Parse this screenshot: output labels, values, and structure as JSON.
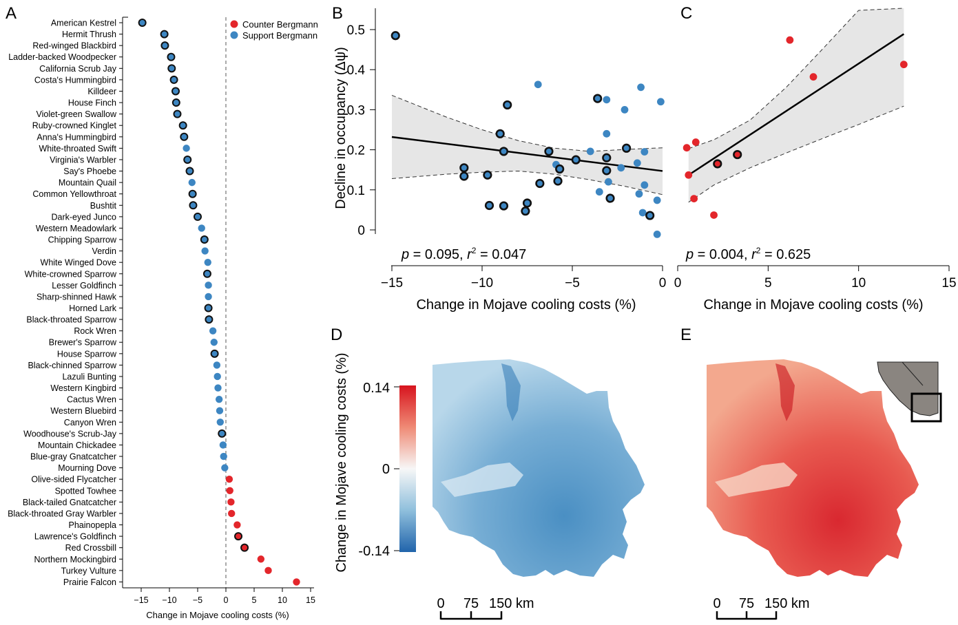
{
  "colors": {
    "counter": "#e3262b",
    "support": "#3d86c2",
    "outline": "#111111",
    "band": "#e6e6e6"
  },
  "panels": {
    "A": {
      "letter": "A",
      "xlabel": "Change in Mojave cooling costs (%)",
      "legend": [
        {
          "label": "Counter Bergmann",
          "color": "#e3262b"
        },
        {
          "label": "Support Bergmann",
          "color": "#3d86c2"
        }
      ]
    },
    "B": {
      "letter": "B",
      "xlabel": "Change in Mojave cooling costs (%)",
      "ylabel": "Decline in occupancy (Δψ)",
      "stats_p": "p",
      "stats_p_val": " = 0.095, ",
      "stats_r": "r",
      "stats_r_sup": "2",
      "stats_r_val": " = 0.047"
    },
    "C": {
      "letter": "C",
      "xlabel": "Change in Mojave cooling costs (%)",
      "stats_p": "p",
      "stats_p_val": " = 0.004, ",
      "stats_r": "r",
      "stats_r_sup": "2",
      "stats_r_val": " = 0.625"
    },
    "D": {
      "letter": "D",
      "colorbar_label": "Change in Mojave cooling costs (%)",
      "colorbar_ticks": [
        "0.14",
        "0",
        "-0.14"
      ],
      "scale": {
        "ticks": [
          "0",
          "75",
          "150 km"
        ]
      }
    },
    "E": {
      "letter": "E",
      "scale": {
        "ticks": [
          "0",
          "75",
          "150 km"
        ]
      }
    }
  },
  "chart_data": [
    {
      "panel": "A",
      "type": "scatter",
      "xlabel": "Change in Mojave cooling costs (%)",
      "xlim": [
        -18,
        15
      ],
      "xticks": [
        -15,
        -10,
        -5,
        0,
        5,
        10,
        15
      ],
      "reference_line_x": 0,
      "legend_position": "top-right",
      "species": [
        {
          "name": "American Kestrel",
          "value": -14.8,
          "group": "support",
          "outlined": true
        },
        {
          "name": "Hermit Thrush",
          "value": -10.9,
          "group": "support",
          "outlined": true
        },
        {
          "name": "Red-winged Blackbird",
          "value": -10.8,
          "group": "support",
          "outlined": true
        },
        {
          "name": "Ladder-backed Woodpecker",
          "value": -9.7,
          "group": "support",
          "outlined": true
        },
        {
          "name": "California Scrub Jay",
          "value": -9.6,
          "group": "support",
          "outlined": true
        },
        {
          "name": "Costa's Hummingbird",
          "value": -9.2,
          "group": "support",
          "outlined": true
        },
        {
          "name": "Killdeer",
          "value": -8.9,
          "group": "support",
          "outlined": true
        },
        {
          "name": "House Finch",
          "value": -8.8,
          "group": "support",
          "outlined": true
        },
        {
          "name": "Violet-green Swallow",
          "value": -8.6,
          "group": "support",
          "outlined": true
        },
        {
          "name": "Ruby-crowned Kinglet",
          "value": -7.6,
          "group": "support",
          "outlined": true
        },
        {
          "name": "Anna's Hummingbird",
          "value": -7.4,
          "group": "support",
          "outlined": true
        },
        {
          "name": "White-throated Swift",
          "value": -7.0,
          "group": "support",
          "outlined": false
        },
        {
          "name": "Virginia's Warbler",
          "value": -6.8,
          "group": "support",
          "outlined": true
        },
        {
          "name": "Say's Phoebe",
          "value": -6.4,
          "group": "support",
          "outlined": true
        },
        {
          "name": "Mountain Quail",
          "value": -6.0,
          "group": "support",
          "outlined": false
        },
        {
          "name": "Common Yellowthroat",
          "value": -5.9,
          "group": "support",
          "outlined": true
        },
        {
          "name": "Bushtit",
          "value": -5.8,
          "group": "support",
          "outlined": true
        },
        {
          "name": "Dark-eyed Junco",
          "value": -5.0,
          "group": "support",
          "outlined": true
        },
        {
          "name": "Western Meadowlark",
          "value": -4.3,
          "group": "support",
          "outlined": false
        },
        {
          "name": "Chipping Sparrow",
          "value": -3.8,
          "group": "support",
          "outlined": true
        },
        {
          "name": "Verdin",
          "value": -3.7,
          "group": "support",
          "outlined": false
        },
        {
          "name": "White Winged Dove",
          "value": -3.2,
          "group": "support",
          "outlined": false
        },
        {
          "name": "White-crowned Sparrow",
          "value": -3.3,
          "group": "support",
          "outlined": true
        },
        {
          "name": "Lesser Goldfinch",
          "value": -3.1,
          "group": "support",
          "outlined": false
        },
        {
          "name": "Sharp-shinned Hawk",
          "value": -3.1,
          "group": "support",
          "outlined": false
        },
        {
          "name": "Horned Lark",
          "value": -3.1,
          "group": "support",
          "outlined": true
        },
        {
          "name": "Black-throated Sparrow",
          "value": -3.0,
          "group": "support",
          "outlined": true
        },
        {
          "name": "Rock Wren",
          "value": -2.3,
          "group": "support",
          "outlined": false
        },
        {
          "name": "Brewer's Sparrow",
          "value": -2.1,
          "group": "support",
          "outlined": false
        },
        {
          "name": "House Sparrow",
          "value": -2.0,
          "group": "support",
          "outlined": true
        },
        {
          "name": "Black-chinned Sparrow",
          "value": -1.6,
          "group": "support",
          "outlined": false
        },
        {
          "name": "Lazuli Bunting",
          "value": -1.5,
          "group": "support",
          "outlined": false
        },
        {
          "name": "Western Kingbird",
          "value": -1.4,
          "group": "support",
          "outlined": false
        },
        {
          "name": "Cactus Wren",
          "value": -1.2,
          "group": "support",
          "outlined": false
        },
        {
          "name": "Western Bluebird",
          "value": -1.1,
          "group": "support",
          "outlined": false
        },
        {
          "name": "Canyon Wren",
          "value": -1.0,
          "group": "support",
          "outlined": false
        },
        {
          "name": "Woodhouse's Scrub-Jay",
          "value": -0.7,
          "group": "support",
          "outlined": true
        },
        {
          "name": "Mountain Chickadee",
          "value": -0.5,
          "group": "support",
          "outlined": false
        },
        {
          "name": "Blue-gray Gnatcatcher",
          "value": -0.4,
          "group": "support",
          "outlined": false
        },
        {
          "name": "Mourning Dove",
          "value": -0.2,
          "group": "support",
          "outlined": false
        },
        {
          "name": "Olive-sided Flycatcher",
          "value": 0.6,
          "group": "counter",
          "outlined": false
        },
        {
          "name": "Spotted Towhee",
          "value": 0.7,
          "group": "counter",
          "outlined": false
        },
        {
          "name": "Black-tailed Gnatcatcher",
          "value": 0.9,
          "group": "counter",
          "outlined": false
        },
        {
          "name": "Black-throated Gray Warbler",
          "value": 1.0,
          "group": "counter",
          "outlined": false
        },
        {
          "name": "Phainopepla",
          "value": 2.0,
          "group": "counter",
          "outlined": false
        },
        {
          "name": "Lawrence's Goldfinch",
          "value": 2.2,
          "group": "counter",
          "outlined": true
        },
        {
          "name": "Red Crossbill",
          "value": 3.3,
          "group": "counter",
          "outlined": true
        },
        {
          "name": "Northern Mockingbird",
          "value": 6.2,
          "group": "counter",
          "outlined": false
        },
        {
          "name": "Turkey Vulture",
          "value": 7.5,
          "group": "counter",
          "outlined": false
        },
        {
          "name": "Prairie Falcon",
          "value": 12.5,
          "group": "counter",
          "outlined": false
        }
      ]
    },
    {
      "panel": "B",
      "type": "scatter",
      "xlabel": "Change in Mojave cooling costs (%)",
      "ylabel": "Decline in occupancy (Δψ)",
      "xlim": [
        -15,
        0
      ],
      "ylim": [
        -0.05,
        0.55
      ],
      "xticks": [
        -15,
        -10,
        -5,
        0
      ],
      "yticks": [
        0,
        0.1,
        0.2,
        0.3,
        0.4,
        0.5
      ],
      "fit": {
        "x": [
          -15,
          0
        ],
        "y": [
          0.232,
          0.147
        ]
      },
      "ci_band": {
        "x": [
          -15,
          -12,
          -10,
          -8,
          -6,
          -4,
          -2,
          0
        ],
        "upper": [
          0.336,
          0.282,
          0.25,
          0.223,
          0.204,
          0.196,
          0.201,
          0.205
        ],
        "lower": [
          0.128,
          0.139,
          0.144,
          0.147,
          0.139,
          0.125,
          0.108,
          0.088
        ]
      },
      "points": [
        {
          "x": -14.8,
          "y": 0.485,
          "outlined": true
        },
        {
          "x": -11.0,
          "y": 0.155,
          "outlined": true
        },
        {
          "x": -11.0,
          "y": 0.134,
          "outlined": true
        },
        {
          "x": -9.7,
          "y": 0.137,
          "outlined": true
        },
        {
          "x": -9.6,
          "y": 0.061,
          "outlined": true
        },
        {
          "x": -9.0,
          "y": 0.24,
          "outlined": true
        },
        {
          "x": -8.8,
          "y": 0.196,
          "outlined": true
        },
        {
          "x": -8.8,
          "y": 0.06,
          "outlined": true
        },
        {
          "x": -8.6,
          "y": 0.312,
          "outlined": true
        },
        {
          "x": -7.5,
          "y": 0.067,
          "outlined": true
        },
        {
          "x": -7.6,
          "y": 0.047,
          "outlined": true
        },
        {
          "x": -6.9,
          "y": 0.363,
          "outlined": false
        },
        {
          "x": -6.8,
          "y": 0.116,
          "outlined": true
        },
        {
          "x": -6.3,
          "y": 0.196,
          "outlined": true
        },
        {
          "x": -5.9,
          "y": 0.163,
          "outlined": false
        },
        {
          "x": -5.7,
          "y": 0.152,
          "outlined": true
        },
        {
          "x": -5.8,
          "y": 0.122,
          "outlined": true
        },
        {
          "x": -4.8,
          "y": 0.175,
          "outlined": true
        },
        {
          "x": -4.0,
          "y": 0.196,
          "outlined": false
        },
        {
          "x": -3.6,
          "y": 0.328,
          "outlined": true
        },
        {
          "x": -3.5,
          "y": 0.095,
          "outlined": false
        },
        {
          "x": -3.1,
          "y": 0.325,
          "outlined": false
        },
        {
          "x": -3.1,
          "y": 0.18,
          "outlined": true
        },
        {
          "x": -3.1,
          "y": 0.148,
          "outlined": true
        },
        {
          "x": -3.1,
          "y": 0.24,
          "outlined": false
        },
        {
          "x": -3.0,
          "y": 0.12,
          "outlined": false
        },
        {
          "x": -2.9,
          "y": 0.079,
          "outlined": true
        },
        {
          "x": -2.3,
          "y": 0.155,
          "outlined": false
        },
        {
          "x": -2.1,
          "y": 0.3,
          "outlined": false
        },
        {
          "x": -2.0,
          "y": 0.204,
          "outlined": true
        },
        {
          "x": -1.4,
          "y": 0.167,
          "outlined": false
        },
        {
          "x": -1.3,
          "y": 0.09,
          "outlined": false
        },
        {
          "x": -1.2,
          "y": 0.356,
          "outlined": false
        },
        {
          "x": -1.1,
          "y": 0.043,
          "outlined": false
        },
        {
          "x": -1.0,
          "y": 0.195,
          "outlined": false
        },
        {
          "x": -1.0,
          "y": 0.112,
          "outlined": false
        },
        {
          "x": -0.7,
          "y": 0.036,
          "outlined": true
        },
        {
          "x": -0.3,
          "y": 0.074,
          "outlined": false
        },
        {
          "x": -0.3,
          "y": -0.011,
          "outlined": false
        },
        {
          "x": -0.1,
          "y": 0.32,
          "outlined": false
        }
      ],
      "stats": "p = 0.095, r2 = 0.047"
    },
    {
      "panel": "C",
      "type": "scatter",
      "xlabel": "Change in Mojave cooling costs (%)",
      "xlim": [
        0,
        15
      ],
      "ylim": [
        -0.05,
        0.55
      ],
      "xticks": [
        0,
        5,
        10,
        15
      ],
      "fit": {
        "x": [
          0.6,
          12.5
        ],
        "y": [
          0.137,
          0.489
        ]
      },
      "ci_band": {
        "x": [
          0.6,
          2,
          4,
          6,
          8,
          10,
          12.5
        ],
        "upper": [
          0.203,
          0.225,
          0.274,
          0.356,
          0.451,
          0.548,
          0.67
        ],
        "lower": [
          0.069,
          0.112,
          0.155,
          0.192,
          0.228,
          0.263,
          0.309
        ]
      },
      "points": [
        {
          "x": 0.5,
          "y": 0.205,
          "outlined": false
        },
        {
          "x": 0.6,
          "y": 0.137,
          "outlined": false
        },
        {
          "x": 0.9,
          "y": 0.078,
          "outlined": false
        },
        {
          "x": 1.0,
          "y": 0.219,
          "outlined": false
        },
        {
          "x": 2.0,
          "y": 0.037,
          "outlined": false
        },
        {
          "x": 2.2,
          "y": 0.165,
          "outlined": true
        },
        {
          "x": 3.3,
          "y": 0.188,
          "outlined": true
        },
        {
          "x": 6.2,
          "y": 0.474,
          "outlined": false
        },
        {
          "x": 7.5,
          "y": 0.382,
          "outlined": false
        },
        {
          "x": 12.5,
          "y": 0.413,
          "outlined": false
        }
      ],
      "stats": "p = 0.004, r2 = 0.625"
    }
  ]
}
